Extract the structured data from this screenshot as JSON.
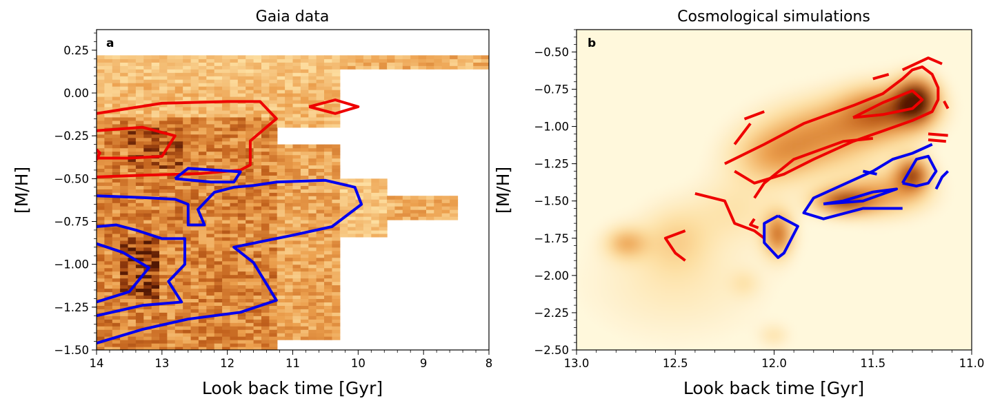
{
  "chart_data": [
    {
      "type": "heatmap",
      "panel_label": "a",
      "title": "Gaia data",
      "xlabel": "Look back time [Gyr]",
      "ylabel": "[M/H]",
      "xlim": [
        14,
        8
      ],
      "ylim": [
        -1.5,
        0.37
      ],
      "x_ticks": [
        14,
        13,
        12,
        11,
        10,
        9,
        8
      ],
      "x_tick_labels": [
        "14",
        "13",
        "12",
        "11",
        "10",
        "9",
        "8"
      ],
      "y_ticks": [
        0.25,
        0.0,
        -0.25,
        -0.5,
        -0.75,
        -1.0,
        -1.25,
        -1.5
      ],
      "y_tick_labels": [
        "0.25",
        "0.00",
        "−0.25",
        "−0.50",
        "−0.75",
        "−1.00",
        "−1.25",
        "−1.50"
      ],
      "colors": {
        "red": "#ee0000",
        "blue": "#0000ee"
      },
      "density_regions": [
        {
          "x": [
            14.0,
            10.3
          ],
          "y": [
            0.05,
            0.22
          ],
          "w": 0.35
        },
        {
          "x": [
            10.3,
            8.0
          ],
          "y": [
            0.13,
            0.22
          ],
          "w": 0.45
        },
        {
          "x": [
            14.0,
            10.4
          ],
          "y": [
            -0.2,
            0.05
          ],
          "w": 0.4
        },
        {
          "x": [
            14.0,
            11.3
          ],
          "y": [
            -1.5,
            -0.15
          ],
          "w": 0.65
        },
        {
          "x": [
            11.3,
            10.3
          ],
          "y": [
            -1.45,
            -0.3
          ],
          "w": 0.5
        },
        {
          "x": [
            10.3,
            9.6
          ],
          "y": [
            -0.85,
            -0.5
          ],
          "w": 0.35
        },
        {
          "x": [
            9.6,
            8.6
          ],
          "y": [
            -0.75,
            -0.6
          ],
          "w": 0.45
        },
        {
          "x": [
            13.7,
            13.1
          ],
          "y": [
            -1.2,
            -0.85
          ],
          "w": 0.95
        },
        {
          "x": [
            13.6,
            12.8
          ],
          "y": [
            -0.45,
            -0.2
          ],
          "w": 0.85
        }
      ],
      "contours": [
        {
          "color": "red",
          "points": [
            [
              14.0,
              -0.12
            ],
            [
              13.0,
              -0.06
            ],
            [
              12.0,
              -0.05
            ],
            [
              11.5,
              -0.05
            ],
            [
              11.25,
              -0.15
            ],
            [
              11.65,
              -0.28
            ],
            [
              11.65,
              -0.42
            ],
            [
              11.8,
              -0.45
            ],
            [
              12.4,
              -0.47
            ],
            [
              13.3,
              -0.48
            ],
            [
              14.0,
              -0.49
            ]
          ]
        },
        {
          "color": "red",
          "points": [
            [
              14.0,
              -0.22
            ],
            [
              13.3,
              -0.2
            ],
            [
              12.8,
              -0.25
            ],
            [
              13.0,
              -0.37
            ],
            [
              13.5,
              -0.38
            ],
            [
              14.0,
              -0.38
            ]
          ]
        },
        {
          "color": "red",
          "points": [
            [
              14.0,
              -0.33
            ],
            [
              13.95,
              -0.35
            ],
            [
              14.0,
              -0.39
            ]
          ]
        },
        {
          "color": "red",
          "points": [
            [
              10.75,
              -0.08
            ],
            [
              10.35,
              -0.04
            ],
            [
              10.0,
              -0.08
            ],
            [
              10.35,
              -0.12
            ],
            [
              10.75,
              -0.08
            ]
          ]
        },
        {
          "color": "blue",
          "points": [
            [
              14.0,
              -0.6
            ],
            [
              13.3,
              -0.61
            ],
            [
              12.8,
              -0.62
            ],
            [
              12.6,
              -0.65
            ],
            [
              12.6,
              -0.77
            ],
            [
              12.35,
              -0.77
            ],
            [
              12.45,
              -0.68
            ],
            [
              12.2,
              -0.58
            ],
            [
              11.9,
              -0.55
            ],
            [
              11.6,
              -0.54
            ],
            [
              11.25,
              -0.52
            ],
            [
              10.5,
              -0.51
            ],
            [
              10.05,
              -0.55
            ],
            [
              9.95,
              -0.65
            ],
            [
              10.4,
              -0.78
            ],
            [
              11.0,
              -0.83
            ],
            [
              11.9,
              -0.9
            ],
            [
              11.6,
              -0.99
            ],
            [
              11.25,
              -1.21
            ],
            [
              11.8,
              -1.28
            ],
            [
              12.6,
              -1.32
            ],
            [
              13.3,
              -1.38
            ],
            [
              14.0,
              -1.46
            ]
          ]
        },
        {
          "color": "blue",
          "points": [
            [
              12.8,
              -0.5
            ],
            [
              12.6,
              -0.44
            ],
            [
              11.8,
              -0.46
            ],
            [
              11.9,
              -0.52
            ],
            [
              12.25,
              -0.52
            ],
            [
              12.8,
              -0.5
            ]
          ]
        },
        {
          "color": "blue",
          "points": [
            [
              14.0,
              -0.78
            ],
            [
              13.7,
              -0.77
            ],
            [
              13.4,
              -0.8
            ],
            [
              13.0,
              -0.85
            ],
            [
              12.65,
              -0.85
            ],
            [
              12.65,
              -1.0
            ],
            [
              12.9,
              -1.1
            ],
            [
              12.7,
              -1.22
            ],
            [
              13.3,
              -1.24
            ],
            [
              14.0,
              -1.3
            ]
          ]
        },
        {
          "color": "blue",
          "points": [
            [
              14.0,
              -0.88
            ],
            [
              13.6,
              -0.93
            ],
            [
              13.2,
              -1.02
            ],
            [
              13.5,
              -1.16
            ],
            [
              14.0,
              -1.22
            ]
          ]
        }
      ]
    },
    {
      "type": "heatmap",
      "panel_label": "b",
      "title": "Cosmological simulations",
      "xlabel": "Look back time [Gyr]",
      "ylabel": "[M/H]",
      "xlim": [
        13.0,
        11.0
      ],
      "ylim": [
        -2.5,
        -0.35
      ],
      "x_ticks": [
        13.0,
        12.5,
        12.0,
        11.5,
        11.0
      ],
      "x_tick_labels": [
        "13.0",
        "12.5",
        "12.0",
        "11.5",
        "11.0"
      ],
      "y_ticks": [
        -0.5,
        -0.75,
        -1.0,
        -1.25,
        -1.5,
        -1.75,
        -2.0,
        -2.25,
        -2.5
      ],
      "y_tick_labels": [
        "−0.50",
        "−0.75",
        "−1.00",
        "−1.25",
        "−1.50",
        "−1.75",
        "−2.00",
        "−2.25",
        "−2.50"
      ],
      "colors": {
        "red": "#ee0000",
        "blue": "#0000ee"
      },
      "density_blobs": [
        {
          "x": 11.28,
          "y": -0.82,
          "sx": 0.07,
          "sy": 0.1,
          "w": 1.0
        },
        {
          "x": 11.45,
          "y": -0.9,
          "sx": 0.15,
          "sy": 0.12,
          "w": 0.65
        },
        {
          "x": 11.75,
          "y": -1.05,
          "sx": 0.2,
          "sy": 0.15,
          "w": 0.45
        },
        {
          "x": 12.0,
          "y": -1.2,
          "sx": 0.15,
          "sy": 0.13,
          "w": 0.35
        },
        {
          "x": 11.3,
          "y": -1.32,
          "sx": 0.06,
          "sy": 0.08,
          "w": 0.75
        },
        {
          "x": 11.65,
          "y": -1.5,
          "sx": 0.1,
          "sy": 0.06,
          "w": 0.7
        },
        {
          "x": 11.45,
          "y": -1.45,
          "sx": 0.15,
          "sy": 0.1,
          "w": 0.4
        },
        {
          "x": 11.98,
          "y": -1.72,
          "sx": 0.05,
          "sy": 0.1,
          "w": 0.6
        },
        {
          "x": 12.75,
          "y": -1.78,
          "sx": 0.07,
          "sy": 0.07,
          "w": 0.35
        },
        {
          "x": 12.5,
          "y": -1.75,
          "sx": 0.12,
          "sy": 0.15,
          "w": 0.2
        },
        {
          "x": 12.2,
          "y": -1.55,
          "sx": 0.15,
          "sy": 0.15,
          "w": 0.15
        },
        {
          "x": 12.5,
          "y": -2.05,
          "sx": 0.3,
          "sy": 0.25,
          "w": 0.12
        },
        {
          "x": 12.0,
          "y": -2.4,
          "sx": 0.05,
          "sy": 0.05,
          "w": 0.15
        },
        {
          "x": 12.15,
          "y": -2.05,
          "sx": 0.05,
          "sy": 0.06,
          "w": 0.12
        }
      ],
      "contours": [
        {
          "color": "red",
          "points": [
            [
              12.25,
              -1.25
            ],
            [
              12.05,
              -1.12
            ],
            [
              11.85,
              -0.98
            ],
            [
              11.6,
              -0.86
            ],
            [
              11.45,
              -0.78
            ],
            [
              11.35,
              -0.68
            ],
            [
              11.3,
              -0.62
            ],
            [
              11.25,
              -0.6
            ],
            [
              11.2,
              -0.65
            ],
            [
              11.17,
              -0.74
            ],
            [
              11.17,
              -0.82
            ],
            [
              11.2,
              -0.9
            ],
            [
              11.3,
              -0.96
            ],
            [
              11.45,
              -1.03
            ],
            [
              11.6,
              -1.1
            ],
            [
              11.8,
              -1.22
            ],
            [
              11.95,
              -1.32
            ],
            [
              12.1,
              -1.38
            ],
            [
              12.2,
              -1.3
            ]
          ]
        },
        {
          "color": "red",
          "points": [
            [
              11.6,
              -0.94
            ],
            [
              11.45,
              -0.84
            ],
            [
              11.3,
              -0.76
            ],
            [
              11.25,
              -0.82
            ],
            [
              11.3,
              -0.88
            ],
            [
              11.45,
              -0.92
            ],
            [
              11.6,
              -0.94
            ]
          ]
        },
        {
          "color": "red",
          "points": [
            [
              12.15,
              -0.95
            ],
            [
              12.05,
              -0.9
            ]
          ]
        },
        {
          "color": "red",
          "points": [
            [
              12.2,
              -1.12
            ],
            [
              12.12,
              -0.98
            ]
          ]
        },
        {
          "color": "red",
          "points": [
            [
              11.5,
              -0.68
            ],
            [
              11.42,
              -0.65
            ]
          ]
        },
        {
          "color": "red",
          "points": [
            [
              11.35,
              -0.62
            ],
            [
              11.22,
              -0.54
            ],
            [
              11.15,
              -0.58
            ]
          ]
        },
        {
          "color": "red",
          "points": [
            [
              11.14,
              -0.83
            ],
            [
              11.12,
              -0.88
            ]
          ]
        },
        {
          "color": "red",
          "points": [
            [
              11.22,
              -1.05
            ],
            [
              11.12,
              -1.06
            ]
          ]
        },
        {
          "color": "red",
          "points": [
            [
              11.22,
              -1.09
            ],
            [
              11.13,
              -1.1
            ]
          ]
        },
        {
          "color": "red",
          "points": [
            [
              12.1,
              -1.48
            ],
            [
              12.05,
              -1.38
            ],
            [
              11.9,
              -1.22
            ],
            [
              11.65,
              -1.1
            ],
            [
              11.5,
              -1.08
            ]
          ]
        },
        {
          "color": "red",
          "points": [
            [
              12.4,
              -1.45
            ],
            [
              12.25,
              -1.5
            ],
            [
              12.2,
              -1.65
            ],
            [
              12.1,
              -1.7
            ],
            [
              12.05,
              -1.75
            ]
          ]
        },
        {
          "color": "red",
          "points": [
            [
              12.1,
              -1.62
            ],
            [
              12.12,
              -1.66
            ],
            [
              12.08,
              -1.68
            ]
          ]
        },
        {
          "color": "red",
          "points": [
            [
              12.45,
              -1.7
            ],
            [
              12.55,
              -1.75
            ],
            [
              12.5,
              -1.85
            ],
            [
              12.45,
              -1.9
            ]
          ]
        },
        {
          "color": "blue",
          "points": [
            [
              11.35,
              -1.55
            ],
            [
              11.55,
              -1.55
            ],
            [
              11.75,
              -1.62
            ],
            [
              11.85,
              -1.58
            ],
            [
              11.8,
              -1.48
            ],
            [
              11.7,
              -1.42
            ],
            [
              11.6,
              -1.36
            ],
            [
              11.5,
              -1.3
            ],
            [
              11.4,
              -1.22
            ],
            [
              11.3,
              -1.18
            ],
            [
              11.25,
              -1.15
            ],
            [
              11.2,
              -1.12
            ]
          ]
        },
        {
          "color": "blue",
          "points": [
            [
              11.75,
              -1.52
            ],
            [
              11.65,
              -1.5
            ],
            [
              11.5,
              -1.44
            ],
            [
              11.38,
              -1.42
            ],
            [
              11.55,
              -1.5
            ],
            [
              11.75,
              -1.52
            ]
          ]
        },
        {
          "color": "blue",
          "points": [
            [
              11.35,
              -1.38
            ],
            [
              11.28,
              -1.22
            ],
            [
              11.22,
              -1.2
            ],
            [
              11.18,
              -1.3
            ],
            [
              11.22,
              -1.38
            ],
            [
              11.28,
              -1.4
            ],
            [
              11.35,
              -1.38
            ]
          ]
        },
        {
          "color": "blue",
          "points": [
            [
              11.18,
              -1.42
            ],
            [
              11.15,
              -1.34
            ],
            [
              11.12,
              -1.3
            ]
          ]
        },
        {
          "color": "blue",
          "points": [
            [
              11.55,
              -1.3
            ],
            [
              11.48,
              -1.32
            ]
          ]
        },
        {
          "color": "blue",
          "points": [
            [
              11.98,
              -1.6
            ],
            [
              11.88,
              -1.67
            ],
            [
              11.95,
              -1.85
            ],
            [
              11.98,
              -1.88
            ],
            [
              12.05,
              -1.78
            ],
            [
              12.05,
              -1.65
            ],
            [
              11.98,
              -1.6
            ]
          ]
        }
      ]
    }
  ]
}
